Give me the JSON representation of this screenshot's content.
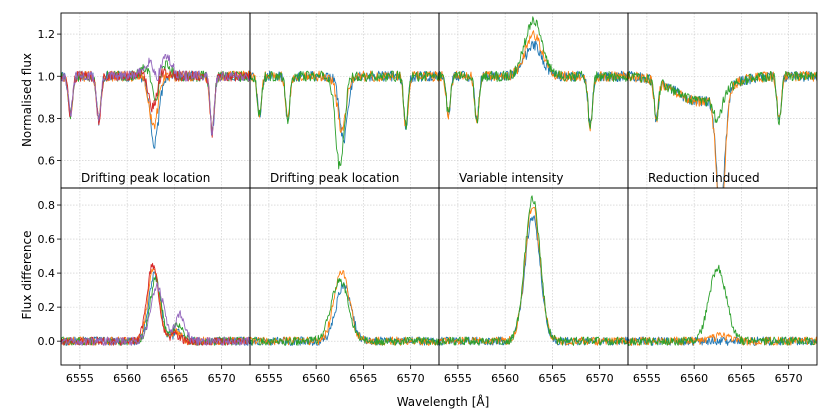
{
  "colors": [
    "#1f77b4",
    "#ff7f0e",
    "#2ca02c",
    "#d62728",
    "#9467bd"
  ],
  "figure": {
    "ylabel_top": "Normalised flux",
    "ylabel_bottom": "Flux difference",
    "xlabel": "Wavelength [Å]"
  },
  "chart_data": {
    "type": "line",
    "grid": true,
    "xlim": [
      6553,
      6573
    ],
    "xticks": [
      6555,
      6560,
      6565,
      6570
    ],
    "top_row": {
      "ylim": [
        0.47,
        1.3
      ],
      "yticks": [
        0.6,
        0.8,
        1.0,
        1.2
      ],
      "ytick_labels": [
        "0.6",
        "0.8",
        "1.0",
        "1.2"
      ]
    },
    "bottom_row": {
      "ylim": [
        -0.14,
        0.9
      ],
      "yticks": [
        0.0,
        0.2,
        0.4,
        0.6,
        0.8
      ],
      "ytick_labels": [
        "0.0",
        "0.2",
        "0.4",
        "0.6",
        "0.8"
      ]
    },
    "panels": [
      {
        "label": "Drifting peak location",
        "lines": [
          6554.0,
          6557.0,
          6562.8,
          6569.0
        ],
        "series": [
          {
            "center": 6562.9,
            "flux_dip": 0.32,
            "flux_bump": 0.0,
            "diff_peak": 0.4,
            "diff_width": 0.6,
            "bump2": 0.05
          },
          {
            "center": 6562.8,
            "flux_dip": 0.24,
            "flux_bump": 0.0,
            "diff_peak": 0.43,
            "diff_width": 0.6,
            "bump2": 0.06
          },
          {
            "center": 6563.0,
            "flux_dip": 0.22,
            "flux_bump": 0.12,
            "diff_peak": 0.36,
            "diff_width": 0.6,
            "bump2": 0.1
          },
          {
            "center": 6562.7,
            "flux_dip": 0.2,
            "flux_bump": 0.05,
            "diff_peak": 0.45,
            "diff_width": 0.6,
            "bump2": 0.04
          },
          {
            "center": 6563.2,
            "flux_dip": 0.18,
            "flux_bump": 0.18,
            "diff_peak": 0.32,
            "diff_width": 0.7,
            "bump2": 0.16
          }
        ]
      },
      {
        "label": "Drifting peak location",
        "lines": [
          6554.0,
          6557.0,
          6569.5
        ],
        "series": [
          {
            "center": 6562.9,
            "flux_dip": 0.3,
            "flux_bump": 0.0,
            "diff_peak": 0.33,
            "diff_width": 0.8,
            "bump2": 0.0
          },
          {
            "center": 6562.7,
            "flux_dip": 0.25,
            "flux_bump": 0.0,
            "diff_peak": 0.41,
            "diff_width": 0.8,
            "bump2": 0.0
          },
          {
            "center": 6562.5,
            "flux_dip": 0.43,
            "flux_bump": 0.0,
            "diff_peak": 0.36,
            "diff_width": 0.9,
            "bump2": 0.0
          }
        ]
      },
      {
        "label": "Variable intensity",
        "lines": [
          6554.0,
          6557.0,
          6569.0
        ],
        "series": [
          {
            "center": 6562.9,
            "flux_dip": 0.0,
            "flux_bump": 0.15,
            "diff_peak": 0.73,
            "diff_width": 0.8,
            "bump2": 0.0
          },
          {
            "center": 6562.9,
            "flux_dip": 0.0,
            "flux_bump": 0.2,
            "diff_peak": 0.8,
            "diff_width": 0.8,
            "bump2": 0.0
          },
          {
            "center": 6562.9,
            "flux_dip": 0.0,
            "flux_bump": 0.27,
            "diff_peak": 0.84,
            "diff_width": 0.8,
            "bump2": 0.0
          }
        ]
      },
      {
        "label": "Reduction induced",
        "lines": [
          6556.0,
          6569.0
        ],
        "series": [
          {
            "center": 6562.8,
            "flux_dip": 0.55,
            "flux_bump": 0.0,
            "diff_peak": 0.0,
            "diff_width": 0.8,
            "bump2": 0.0
          },
          {
            "center": 6562.8,
            "flux_dip": 0.6,
            "flux_bump": 0.0,
            "diff_peak": 0.03,
            "diff_width": 0.8,
            "bump2": 0.0
          },
          {
            "center": 6562.5,
            "flux_dip": 0.12,
            "flux_bump": 0.0,
            "diff_peak": 0.43,
            "diff_width": 0.9,
            "bump2": 0.0
          }
        ]
      }
    ]
  }
}
